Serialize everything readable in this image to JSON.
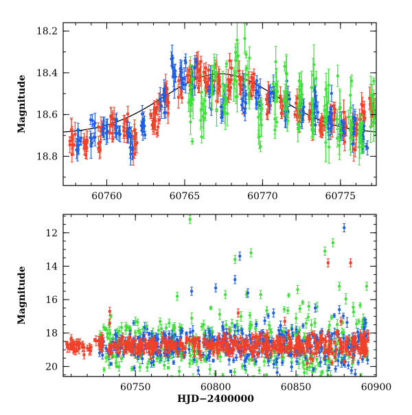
{
  "chart_data": [
    {
      "type": "scatter",
      "panel": "top",
      "xlabel": "",
      "ylabel": "Magnitude",
      "xlim": [
        60757.2,
        60777.3
      ],
      "ylim": [
        18.94,
        18.16
      ],
      "y_inverted": true,
      "xticks": [
        60760,
        60765,
        60770,
        60775
      ],
      "xtick_labels": [
        "60760",
        "60765",
        "60770",
        "60775"
      ],
      "yticks": [
        18.2,
        18.4,
        18.6,
        18.8
      ],
      "ytick_labels": [
        "18.2",
        "18.4",
        "18.6",
        "18.8"
      ],
      "grid": false,
      "legend": "none",
      "series": [
        {
          "color": "#f0402a",
          "x": [
            60757.8,
            60758.6,
            60759.6,
            60760.3,
            60761.2,
            60761.8,
            60762.9,
            60763.2,
            60763.8,
            60764.7,
            60765.3,
            60765.9,
            60766.4,
            60767.1,
            60767.9,
            60768.6,
            60769.3,
            60770.4,
            60771.3,
            60772.2,
            60773.1,
            60773.8,
            60774.5,
            60775.2,
            60775.9,
            60776.4,
            60777.0
          ],
          "y": [
            18.72,
            18.73,
            18.72,
            18.65,
            18.68,
            18.72,
            18.63,
            18.6,
            18.52,
            18.43,
            18.42,
            18.39,
            18.44,
            18.45,
            18.44,
            18.47,
            18.48,
            18.55,
            18.58,
            18.58,
            18.62,
            18.64,
            18.63,
            18.66,
            18.68,
            18.6,
            18.55
          ]
        },
        {
          "color": "#1f5fe0",
          "x": [
            60758.2,
            60759.1,
            60759.9,
            60760.7,
            60761.5,
            60762.3,
            60763.6,
            60764.3,
            60764.9,
            60765.6,
            60766.7,
            60767.5,
            60768.8,
            60769.7,
            60770.6,
            60771.6,
            60772.6,
            60773.4,
            60774.3,
            60775.1,
            60775.8,
            60776.6
          ],
          "y": [
            18.72,
            18.7,
            18.7,
            18.67,
            18.7,
            18.65,
            18.54,
            18.4,
            18.42,
            18.41,
            18.48,
            18.55,
            18.52,
            18.5,
            18.52,
            18.56,
            18.58,
            18.6,
            18.62,
            18.66,
            18.66,
            18.7
          ]
        },
        {
          "color": "#3fe03a",
          "x": [
            60765.4,
            60766.2,
            60766.9,
            60767.6,
            60768.3,
            60769.0,
            60769.9,
            60770.8,
            60771.5,
            60772.4,
            60773.3,
            60774.1,
            60774.9,
            60775.6,
            60776.3,
            60777.1
          ],
          "y": [
            18.55,
            18.6,
            18.45,
            18.5,
            18.4,
            18.45,
            18.6,
            18.5,
            18.5,
            18.55,
            18.55,
            18.6,
            18.62,
            18.64,
            18.68,
            18.62
          ]
        }
      ],
      "model_curve": {
        "color": "#000000",
        "x_peak": 60767.3,
        "mag_peak": 18.405,
        "mag_base": 18.69
      }
    },
    {
      "type": "scatter",
      "panel": "bottom",
      "xlabel": "HJD−2400000",
      "ylabel": "Magnitude",
      "xlim": [
        60705,
        60900
      ],
      "ylim": [
        20.6,
        10.9
      ],
      "y_inverted": true,
      "xticks": [
        60750,
        60800,
        60850,
        60900
      ],
      "xtick_labels": [
        "60750",
        "60800",
        "60850",
        "60900"
      ],
      "yticks": [
        12,
        14,
        16,
        18,
        20
      ],
      "ytick_labels": [
        "12",
        "14",
        "16",
        "18",
        "20"
      ],
      "grid": false,
      "legend": "none",
      "baseline": {
        "x_start": 60707,
        "x_end": 60895,
        "mag": 18.75,
        "scatter_growth": 0.9
      },
      "outliers": {
        "green": [
          [
            60784,
            11.2
          ],
          [
            60812,
            13.6
          ],
          [
            60822,
            13.2
          ],
          [
            60873,
            12.6
          ],
          [
            60868,
            13.1
          ],
          [
            60877,
            15.2
          ],
          [
            60894,
            15.2
          ],
          [
            60776,
            15.8
          ],
          [
            60828,
            15.7
          ],
          [
            60806,
            15.7
          ],
          [
            60851,
            15.4
          ],
          [
            60858,
            16.4
          ],
          [
            60750,
            17.3
          ],
          [
            60744,
            17.6
          ],
          [
            60757,
            17.6
          ],
          [
            60771,
            17.4
          ]
        ],
        "blue": [
          [
            60880,
            11.7
          ],
          [
            60815,
            13.4
          ],
          [
            60812,
            14.8
          ],
          [
            60785,
            15.5
          ],
          [
            60800,
            15.3
          ],
          [
            60820,
            15.6
          ],
          [
            60862,
            16.5
          ],
          [
            60836,
            16.8
          ],
          [
            60877,
            16.6
          ],
          [
            60755,
            18.2
          ]
        ],
        "red": [
          [
            60870,
            13.8
          ],
          [
            60884,
            13.8
          ],
          [
            60734,
            16.7
          ],
          [
            60734,
            17.4
          ],
          [
            60814,
            16.8
          ],
          [
            60843,
            17.3
          ],
          [
            60878,
            17.3
          ],
          [
            60718,
            19.3
          ],
          [
            60740,
            19.2
          ],
          [
            60857,
            19.8
          ]
        ]
      },
      "series_colors": {
        "red": "#f0402a",
        "blue": "#1f5fe0",
        "green": "#3fe03a"
      }
    }
  ]
}
